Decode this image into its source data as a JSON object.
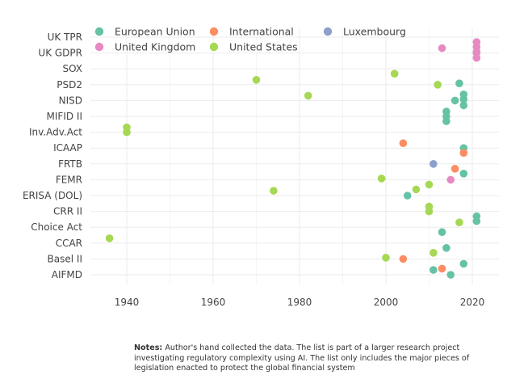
{
  "chart_data": {
    "type": "scatter",
    "x_ticks": [
      1940,
      1960,
      1980,
      2000,
      2020
    ],
    "xlim": [
      1929,
      2027
    ],
    "categories": [
      "AIFMD",
      "Basel II",
      "CCAR",
      "Choice Act",
      "CRR II",
      "ERISA (DOL)",
      "FEMR",
      "FRTB",
      "ICAAP",
      "Inv.Adv.Act",
      "MIFID II",
      "NISD",
      "PSD2",
      "SOX",
      "UK GDPR",
      "UK TPR"
    ],
    "grid": true,
    "legend_position": "top",
    "series": [
      {
        "name": "European Union",
        "color": "#66c2a5",
        "points": [
          {
            "x": 2011,
            "y": "AIFMD",
            "lane": 0
          },
          {
            "x": 2015,
            "y": "AIFMD",
            "lane": 1
          },
          {
            "x": 2018,
            "y": "Basel II",
            "lane": 2
          },
          {
            "x": 2014,
            "y": "CCAR",
            "lane": 2
          },
          {
            "x": 2013,
            "y": "Choice Act",
            "lane": 2
          },
          {
            "x": 2021,
            "y": "CRR II",
            "lane": 2
          },
          {
            "x": 2021,
            "y": "CRR II",
            "lane": 3
          },
          {
            "x": 2005,
            "y": "ERISA (DOL)",
            "lane": 1
          },
          {
            "x": 2018,
            "y": "FRTB",
            "lane": 3
          },
          {
            "x": 2018,
            "y": "ICAAP",
            "lane": 1
          },
          {
            "x": 2014,
            "y": "MIFID II",
            "lane": 0
          },
          {
            "x": 2014,
            "y": "MIFID II",
            "lane": 1
          },
          {
            "x": 2014,
            "y": "MIFID II",
            "lane": 2
          },
          {
            "x": 2016,
            "y": "NISD",
            "lane": 1
          },
          {
            "x": 2018,
            "y": "NISD",
            "lane": 2
          },
          {
            "x": 2018,
            "y": "PSD2",
            "lane": 3
          },
          {
            "x": 2018,
            "y": "PSD2",
            "lane": 4
          },
          {
            "x": 2017,
            "y": "SOX",
            "lane": 4
          }
        ]
      },
      {
        "name": "International",
        "color": "#fc8d62",
        "points": [
          {
            "x": 2013,
            "y": "Basel II",
            "lane": 3
          },
          {
            "x": 2004,
            "y": "Basel II",
            "lane": 1
          },
          {
            "x": 2016,
            "y": "FRTB",
            "lane": 2
          },
          {
            "x": 2004,
            "y": "ICAAP",
            "lane": 0
          },
          {
            "x": 2018,
            "y": "ICAAP",
            "lane": 2
          }
        ]
      },
      {
        "name": "Luxembourg",
        "color": "#8da0cb",
        "points": [
          {
            "x": 2011,
            "y": "FRTB",
            "lane": 1
          }
        ]
      },
      {
        "name": "United Kingdom",
        "color": "#e78ac3",
        "points": [
          {
            "x": 2015,
            "y": "FEMR",
            "lane": 1
          },
          {
            "x": 2013,
            "y": "UK GDPR",
            "lane": 0
          },
          {
            "x": 2021,
            "y": "UK GDPR",
            "lane": 1
          },
          {
            "x": 2021,
            "y": "UK GDPR",
            "lane": 2
          },
          {
            "x": 2021,
            "y": "UK TPR",
            "lane": 2
          },
          {
            "x": 2021,
            "y": "UK TPR",
            "lane": 3
          },
          {
            "x": 2021,
            "y": "UK TPR",
            "lane": 4
          }
        ]
      },
      {
        "name": "United States",
        "color": "#a6d854",
        "points": [
          {
            "x": 2011,
            "y": "CCAR",
            "lane": 3
          },
          {
            "x": 2000,
            "y": "CCAR",
            "lane": 4
          },
          {
            "x": 1936,
            "y": "CCAR",
            "lane": 0
          },
          {
            "x": 2017,
            "y": "Choice Act",
            "lane": 0
          },
          {
            "x": 2010,
            "y": "CRR II",
            "lane": 0
          },
          {
            "x": 2010,
            "y": "CRR II",
            "lane": 1
          },
          {
            "x": 1974,
            "y": "ERISA (DOL)",
            "lane": 0
          },
          {
            "x": 2010,
            "y": "FEMR",
            "lane": 2
          },
          {
            "x": 2007,
            "y": "FEMR",
            "lane": 3
          },
          {
            "x": 1999,
            "y": "FRTB",
            "lane": 4
          },
          {
            "x": 1940,
            "y": "Inv.Adv.Act",
            "lane": 0
          },
          {
            "x": 1940,
            "y": "Inv.Adv.Act",
            "lane": 1
          },
          {
            "x": 1982,
            "y": "NISD",
            "lane": 0
          },
          {
            "x": 2012,
            "y": "PSD2",
            "lane": 1
          },
          {
            "x": 1970,
            "y": "PSD2",
            "lane": 0
          },
          {
            "x": 2002,
            "y": "SOX",
            "lane": 2
          }
        ]
      }
    ]
  },
  "notes": {
    "label": "Notes:",
    "text": " Author's hand collected the data.  The list is part of a larger research project investigating  regulatory complexity using AI.  The list only includes the major pieces of legislation enacted to protect the global financial system"
  }
}
